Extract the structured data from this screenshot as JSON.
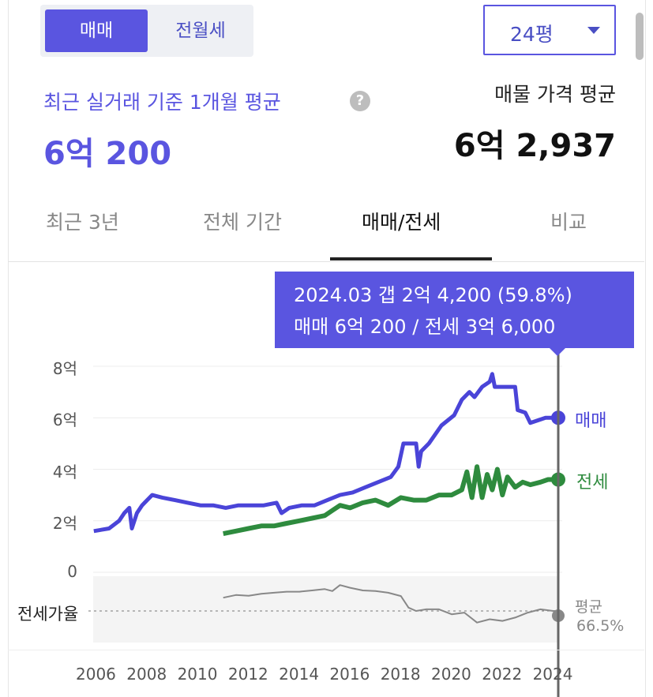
{
  "toggle": {
    "sale": "매매",
    "rent": "전월세"
  },
  "size_select": {
    "value": "24평"
  },
  "recent": {
    "label": "최근 실거래 기준 1개월 평균",
    "value": "6억 200"
  },
  "listing": {
    "label": "매물 가격 평균",
    "value": "6억 2,937"
  },
  "tabs": [
    {
      "label": "최근 3년"
    },
    {
      "label": "전체 기간"
    },
    {
      "label": "매매/전세"
    },
    {
      "label": "비교"
    }
  ],
  "tooltip": {
    "line1": "2024.03  갭 2억 4,200 (59.8%)",
    "line2": "매매 6억 200 / 전세 3억 6,000"
  },
  "ratio": {
    "label": "전세가율",
    "avg_label": "평균",
    "avg_value": "66.5%"
  },
  "colors": {
    "accent": "#5a55e0",
    "sale": "#4a44d8",
    "rent": "#2e8b3e",
    "ratio": "#888888"
  },
  "chart_data": {
    "type": "line",
    "y_ticks": [
      "0",
      "2억",
      "4억",
      "6억",
      "8억"
    ],
    "x_ticks": [
      "2006",
      "2008",
      "2010",
      "2012",
      "2014",
      "2016",
      "2018",
      "2020",
      "2022",
      "2024"
    ],
    "ylim": [
      0,
      8
    ],
    "xlim": [
      2006,
      2024.2
    ],
    "series": [
      {
        "name": "매매",
        "points": [
          [
            2005.9,
            1.6
          ],
          [
            2006.5,
            1.7
          ],
          [
            2006.9,
            2.0
          ],
          [
            2007.1,
            2.3
          ],
          [
            2007.3,
            2.5
          ],
          [
            2007.4,
            1.7
          ],
          [
            2007.6,
            2.3
          ],
          [
            2007.8,
            2.6
          ],
          [
            2008.2,
            3.0
          ],
          [
            2008.6,
            2.9
          ],
          [
            2009.1,
            2.8
          ],
          [
            2009.6,
            2.7
          ],
          [
            2010.1,
            2.6
          ],
          [
            2010.6,
            2.6
          ],
          [
            2011.1,
            2.5
          ],
          [
            2011.6,
            2.6
          ],
          [
            2012.1,
            2.6
          ],
          [
            2012.6,
            2.6
          ],
          [
            2013.1,
            2.7
          ],
          [
            2013.3,
            2.3
          ],
          [
            2013.6,
            2.5
          ],
          [
            2014.1,
            2.6
          ],
          [
            2014.6,
            2.6
          ],
          [
            2015.1,
            2.8
          ],
          [
            2015.6,
            3.0
          ],
          [
            2016.1,
            3.1
          ],
          [
            2016.6,
            3.3
          ],
          [
            2017.1,
            3.5
          ],
          [
            2017.6,
            3.7
          ],
          [
            2017.9,
            4.1
          ],
          [
            2018.1,
            5.0
          ],
          [
            2018.6,
            5.0
          ],
          [
            2018.7,
            4.1
          ],
          [
            2018.8,
            4.7
          ],
          [
            2019.1,
            5.0
          ],
          [
            2019.6,
            5.7
          ],
          [
            2020.1,
            6.1
          ],
          [
            2020.4,
            6.7
          ],
          [
            2020.7,
            7.0
          ],
          [
            2020.9,
            6.8
          ],
          [
            2021.2,
            7.2
          ],
          [
            2021.5,
            7.4
          ],
          [
            2021.6,
            7.7
          ],
          [
            2021.7,
            7.2
          ],
          [
            2022.1,
            7.2
          ],
          [
            2022.5,
            7.2
          ],
          [
            2022.6,
            6.3
          ],
          [
            2022.9,
            6.2
          ],
          [
            2023.1,
            5.8
          ],
          [
            2023.4,
            5.9
          ],
          [
            2023.7,
            6.0
          ],
          [
            2024.0,
            6.0
          ],
          [
            2024.2,
            6.0
          ]
        ]
      },
      {
        "name": "전세",
        "points": [
          [
            2011.0,
            1.5
          ],
          [
            2011.5,
            1.6
          ],
          [
            2012.0,
            1.7
          ],
          [
            2012.5,
            1.8
          ],
          [
            2013.0,
            1.8
          ],
          [
            2013.5,
            1.9
          ],
          [
            2014.0,
            2.0
          ],
          [
            2014.5,
            2.1
          ],
          [
            2015.0,
            2.2
          ],
          [
            2015.3,
            2.4
          ],
          [
            2015.6,
            2.6
          ],
          [
            2016.0,
            2.5
          ],
          [
            2016.5,
            2.7
          ],
          [
            2017.0,
            2.8
          ],
          [
            2017.5,
            2.6
          ],
          [
            2018.0,
            2.9
          ],
          [
            2018.5,
            2.8
          ],
          [
            2019.0,
            2.8
          ],
          [
            2019.5,
            3.0
          ],
          [
            2020.0,
            3.0
          ],
          [
            2020.4,
            3.2
          ],
          [
            2020.6,
            3.9
          ],
          [
            2020.8,
            2.9
          ],
          [
            2021.0,
            4.1
          ],
          [
            2021.2,
            2.9
          ],
          [
            2021.4,
            3.8
          ],
          [
            2021.6,
            3.2
          ],
          [
            2021.8,
            4.0
          ],
          [
            2022.0,
            3.0
          ],
          [
            2022.2,
            3.7
          ],
          [
            2022.5,
            3.3
          ],
          [
            2022.8,
            3.5
          ],
          [
            2023.1,
            3.4
          ],
          [
            2023.5,
            3.5
          ],
          [
            2023.8,
            3.6
          ],
          [
            2024.2,
            3.6
          ]
        ]
      },
      {
        "name": "전세가율",
        "points": [
          [
            2011.0,
            0.4
          ],
          [
            2011.5,
            0.48
          ],
          [
            2012.0,
            0.46
          ],
          [
            2012.5,
            0.52
          ],
          [
            2013.0,
            0.55
          ],
          [
            2013.5,
            0.58
          ],
          [
            2014.0,
            0.58
          ],
          [
            2014.5,
            0.62
          ],
          [
            2015.0,
            0.66
          ],
          [
            2015.3,
            0.6
          ],
          [
            2015.6,
            0.78
          ],
          [
            2016.0,
            0.7
          ],
          [
            2016.5,
            0.62
          ],
          [
            2017.0,
            0.6
          ],
          [
            2017.5,
            0.55
          ],
          [
            2018.0,
            0.45
          ],
          [
            2018.3,
            0.1
          ],
          [
            2018.6,
            0.0
          ],
          [
            2019.0,
            0.05
          ],
          [
            2019.5,
            0.05
          ],
          [
            2020.0,
            -0.1
          ],
          [
            2020.5,
            -0.05
          ],
          [
            2021.0,
            -0.35
          ],
          [
            2021.5,
            -0.25
          ],
          [
            2022.0,
            -0.3
          ],
          [
            2022.5,
            -0.2
          ],
          [
            2023.0,
            -0.05
          ],
          [
            2023.5,
            0.05
          ],
          [
            2024.0,
            0.0
          ],
          [
            2024.2,
            0.0
          ]
        ]
      }
    ],
    "selected": "2024.03"
  }
}
